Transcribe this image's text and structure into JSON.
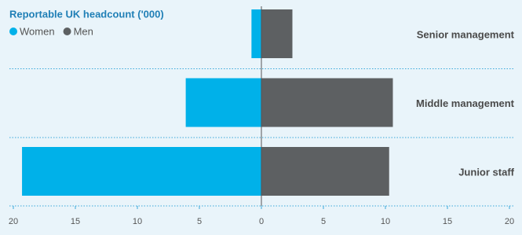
{
  "chart_data": {
    "type": "diverging-bar",
    "title": "Reportable UK headcount ('000)",
    "categories": [
      "Senior management",
      "Middle management",
      "Junior staff"
    ],
    "series": [
      {
        "name": "Women",
        "color": "#00b1e9",
        "values": [
          -0.8,
          -6.1,
          -19.3
        ]
      },
      {
        "name": "Men",
        "color": "#5d6062",
        "values": [
          2.5,
          10.6,
          10.3
        ]
      }
    ],
    "xlim": [
      -20,
      20
    ],
    "xticks": [
      {
        "value": -20,
        "label": "20"
      },
      {
        "value": -15,
        "label": "15"
      },
      {
        "value": -10,
        "label": "10"
      },
      {
        "value": -5,
        "label": "5"
      },
      0,
      5,
      10,
      15,
      20
    ]
  }
}
